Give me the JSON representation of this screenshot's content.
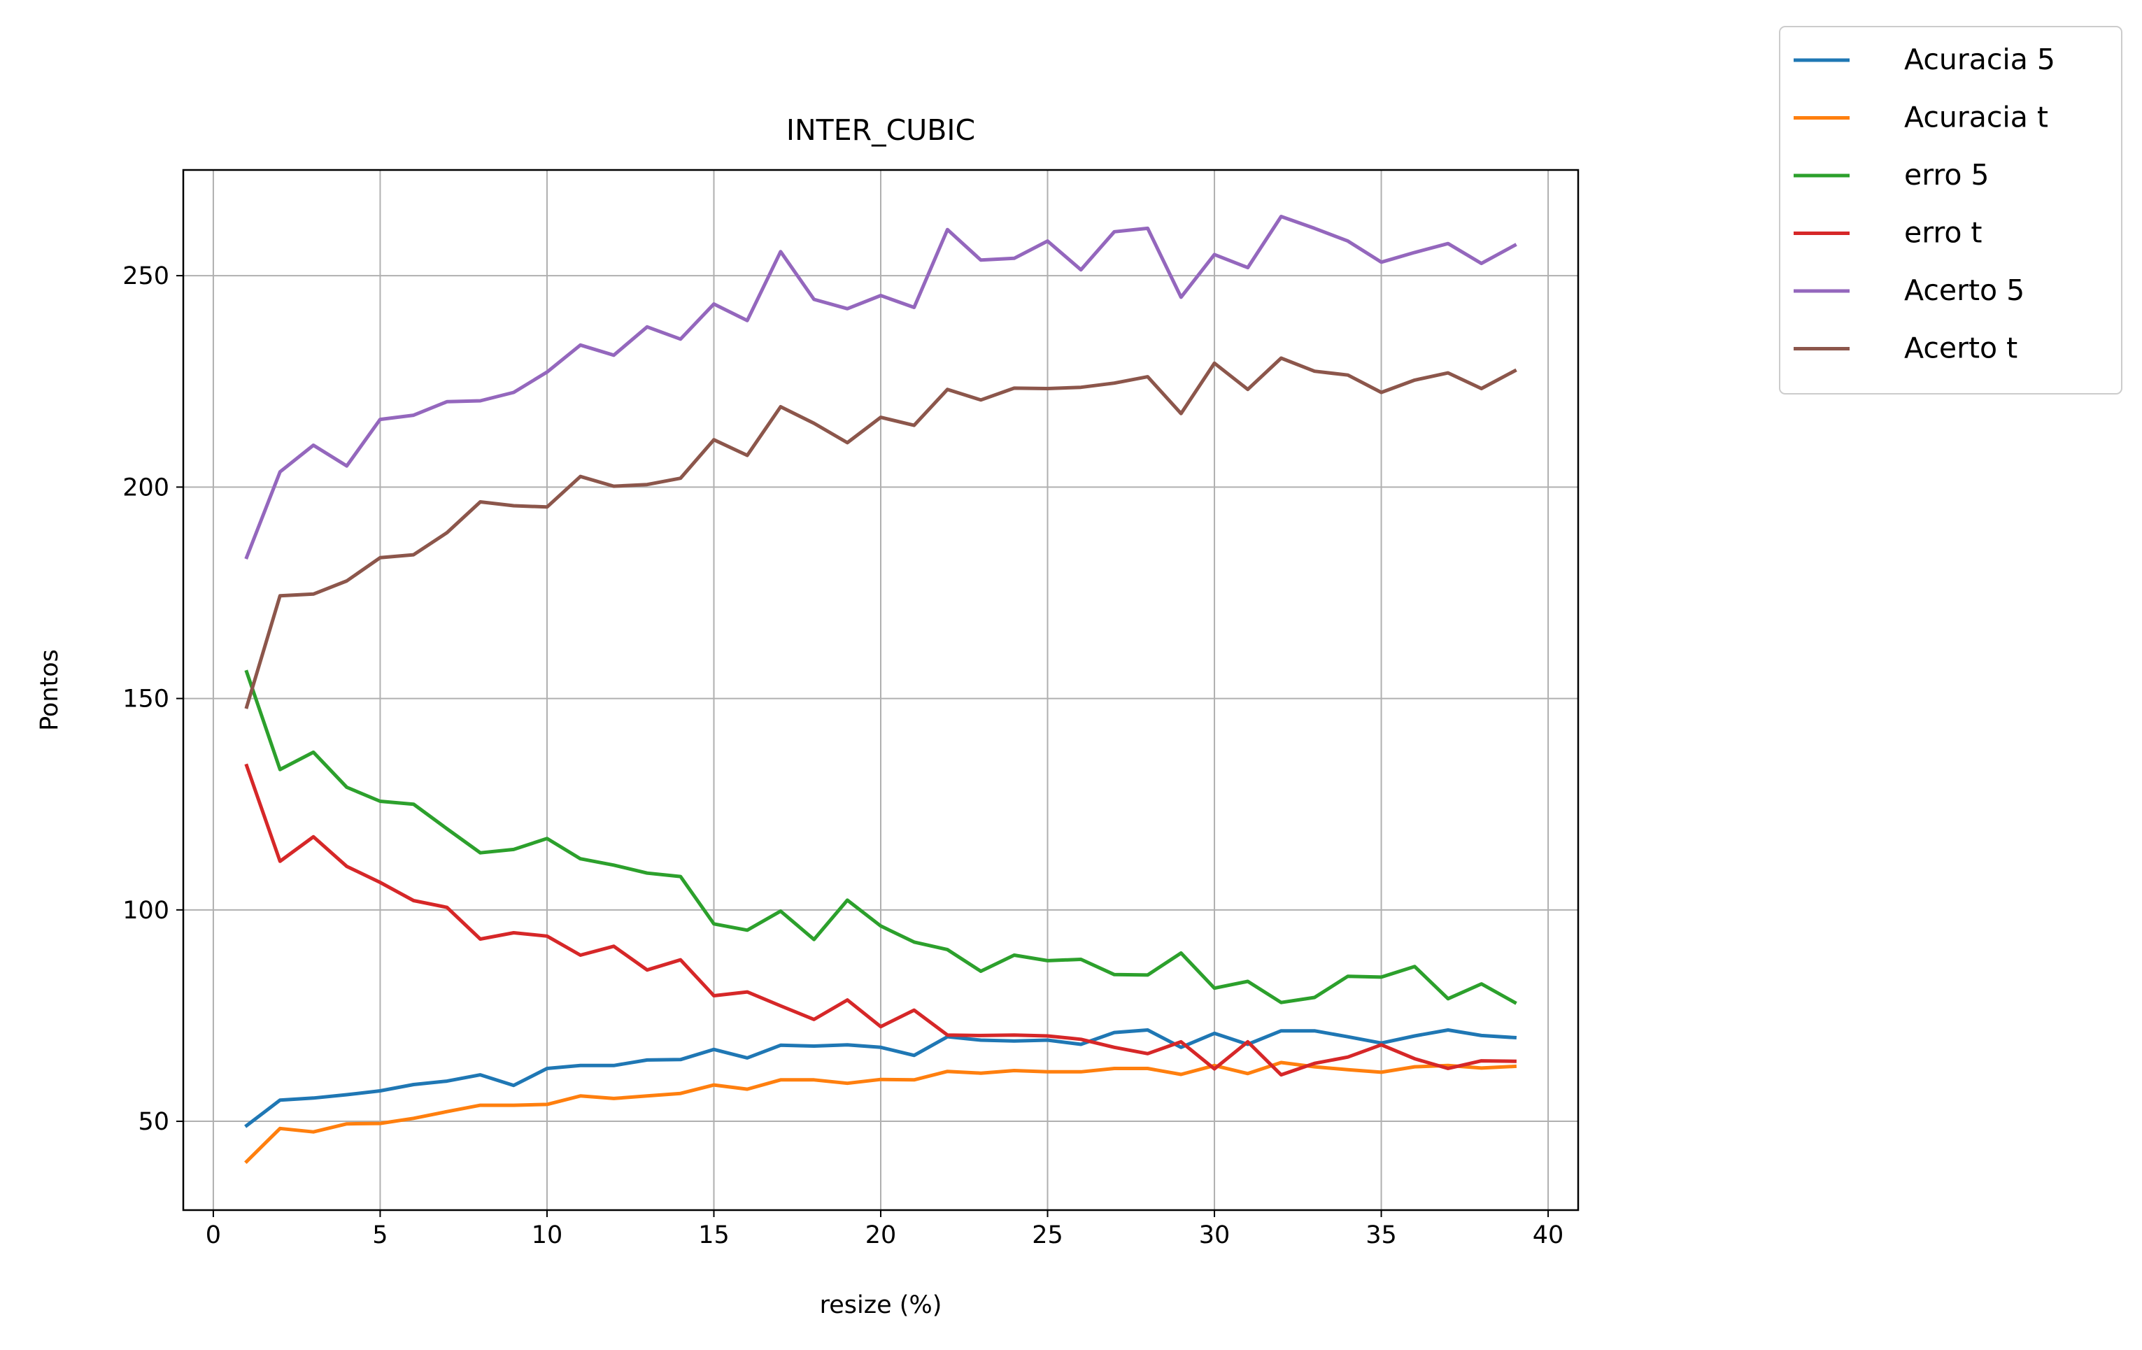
{
  "chart_data": {
    "type": "line",
    "title": "INTER_CUBIC",
    "xlabel": "resize (%)",
    "ylabel": "Pontos",
    "xlim": [
      -0.9,
      40.9
    ],
    "ylim": [
      29,
      275
    ],
    "xticks": [
      0,
      5,
      10,
      15,
      20,
      25,
      30,
      35,
      40
    ],
    "yticks": [
      50,
      100,
      150,
      200,
      250
    ],
    "grid": true,
    "legend_position": "outside-top-right",
    "x": [
      1,
      2,
      3,
      4,
      5,
      6,
      7,
      8,
      9,
      10,
      11,
      12,
      13,
      14,
      15,
      16,
      17,
      18,
      19,
      20,
      21,
      22,
      23,
      24,
      25,
      26,
      27,
      28,
      29,
      30,
      31,
      32,
      33,
      34,
      35,
      36,
      37,
      38,
      39
    ],
    "series": [
      {
        "name": "Acuracia 5",
        "color": "#1f77b4",
        "values": [
          49,
          55,
          55.5,
          56.3,
          57.2,
          58.7,
          59.5,
          61,
          58.5,
          62.5,
          63.2,
          63.2,
          64.5,
          64.6,
          67,
          65,
          68,
          67.8,
          68.1,
          67.5,
          65.6,
          70,
          69.2,
          69,
          69.2,
          68.2,
          71,
          71.6,
          67.5,
          70.8,
          68.2,
          71.4,
          71.4,
          70,
          68.5,
          70.2,
          71.6,
          70.3,
          69.8
        ]
      },
      {
        "name": "Acuracia t",
        "color": "#ff7f0e",
        "values": [
          40.5,
          48.3,
          47.5,
          49.4,
          49.5,
          50.7,
          52.3,
          53.8,
          53.8,
          54,
          56,
          55.4,
          56,
          56.6,
          58.6,
          57.6,
          59.8,
          59.8,
          59,
          59.9,
          59.8,
          61.8,
          61.4,
          62,
          61.7,
          61.7,
          62.5,
          62.5,
          61.1,
          63.2,
          61.3,
          63.9,
          62.9,
          62.2,
          61.6,
          62.9,
          63.2,
          62.6,
          63
        ]
      },
      {
        "name": "erro 5",
        "color": "#2ca02c",
        "values": [
          156.3,
          133.2,
          137.3,
          129,
          125.7,
          125,
          119.2,
          113.5,
          114.3,
          116.9,
          112.1,
          110.6,
          108.7,
          107.9,
          96.7,
          95.2,
          99.7,
          93,
          102.3,
          96.2,
          92.4,
          90.6,
          85.5,
          89.3,
          88,
          88.3,
          84.7,
          84.6,
          89.8,
          81.5,
          83.1,
          78.1,
          79.3,
          84.3,
          84.1,
          86.6,
          79,
          82.5,
          78.1
        ]
      },
      {
        "name": "erro t",
        "color": "#d62728",
        "values": [
          134.1,
          111.5,
          117.3,
          110.3,
          106.5,
          102.2,
          100.6,
          93.1,
          94.6,
          93.8,
          89.3,
          91.4,
          85.8,
          88.2,
          79.7,
          80.6,
          77.3,
          74.1,
          78.7,
          72.4,
          76.3,
          70.4,
          70.3,
          70.4,
          70.2,
          69.4,
          67.5,
          66,
          68.8,
          62.4,
          68.8,
          61,
          63.7,
          65.2,
          68.1,
          64.8,
          62.5,
          64.3,
          64.2
        ]
      },
      {
        "name": "Acerto 5",
        "color": "#9467bd",
        "values": [
          183.4,
          203.6,
          209.9,
          205,
          216,
          217,
          220.2,
          220.4,
          222.4,
          227.2,
          233.6,
          231.2,
          237.9,
          235,
          243.3,
          239.4,
          255.7,
          244.4,
          242.2,
          245.3,
          242.5,
          260.9,
          253.7,
          254.1,
          258.2,
          251.4,
          260.4,
          261.2,
          244.9,
          255,
          251.9,
          264,
          261.2,
          258.2,
          253.2,
          255.5,
          257.6,
          252.9,
          257.2
        ]
      },
      {
        "name": "Acerto t",
        "color": "#8c564b",
        "values": [
          148,
          174.3,
          174.7,
          177.8,
          183.3,
          184,
          189.2,
          196.5,
          195.6,
          195.3,
          202.5,
          200.2,
          200.6,
          202.1,
          211.2,
          207.5,
          219,
          215.1,
          210.5,
          216.5,
          214.6,
          223.1,
          220.6,
          223.4,
          223.3,
          223.6,
          224.6,
          226.1,
          217.4,
          229.3,
          223.1,
          230.5,
          227.4,
          226.5,
          222.4,
          225.3,
          227,
          223.3,
          227.5
        ]
      }
    ]
  }
}
